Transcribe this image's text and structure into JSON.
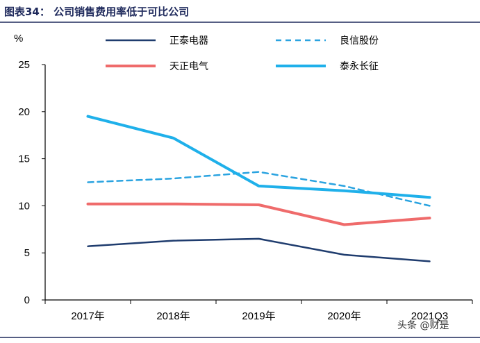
{
  "chart_data": {
    "type": "line",
    "title": "图表34：  公司销售费用率低于可比公司",
    "ylabel": "%",
    "ylim": [
      0,
      25
    ],
    "yticks": [
      0,
      5,
      10,
      15,
      20,
      25
    ],
    "categories": [
      "2017年",
      "2018年",
      "2019年",
      "2020年",
      "2021Q3"
    ],
    "series": [
      {
        "name": "正泰电器",
        "values": [
          5.7,
          6.3,
          6.5,
          4.8,
          4.1
        ],
        "color": "#1f3c6e",
        "style": "solid",
        "width": 2.5
      },
      {
        "name": "良信股份",
        "values": [
          12.5,
          12.9,
          13.6,
          12.1,
          10.0
        ],
        "color": "#2aa3e0",
        "style": "dashed",
        "width": 2.5
      },
      {
        "name": "天正电气",
        "values": [
          10.2,
          10.2,
          10.1,
          8.0,
          8.7
        ],
        "color": "#ef6b6b",
        "style": "solid",
        "width": 4
      },
      {
        "name": "泰永长征",
        "values": [
          19.5,
          17.2,
          12.1,
          11.6,
          10.9
        ],
        "color": "#1fb0ea",
        "style": "solid",
        "width": 4
      }
    ],
    "legend": "top",
    "grid": false
  },
  "watermark": "头条 @财是"
}
